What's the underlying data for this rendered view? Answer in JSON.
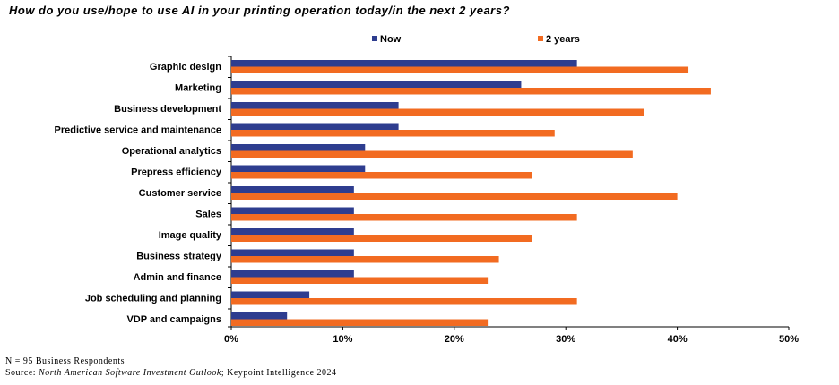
{
  "title": "How do you use/hope to use AI in your printing operation today/in the next 2 years?",
  "footnote": {
    "respondents": "N = 95 Business Respondents",
    "source_prefix": "Source: ",
    "source_title": "North American Software Investment Outlook",
    "source_suffix": "; Keypoint Intelligence 2024"
  },
  "colors": {
    "now": "#2e3d8f",
    "two_years": "#f26b21",
    "axis": "#000000"
  },
  "chart_data": {
    "type": "bar",
    "orientation": "horizontal",
    "categories": [
      "Graphic design",
      "Marketing",
      "Business development",
      "Predictive service and maintenance",
      "Operational analytics",
      "Prepress efficiency",
      "Customer service",
      "Sales",
      "Image quality",
      "Business strategy",
      "Admin and finance",
      "Job scheduling and planning",
      "VDP and campaigns"
    ],
    "series": [
      {
        "name": "Now",
        "values": [
          31,
          26,
          15,
          15,
          12,
          12,
          11,
          11,
          11,
          11,
          11,
          7,
          5
        ]
      },
      {
        "name": "2 years",
        "values": [
          41,
          43,
          37,
          29,
          36,
          27,
          40,
          31,
          27,
          24,
          23,
          31,
          23
        ]
      }
    ],
    "xlim": [
      0,
      50
    ],
    "xticks": [
      "0%",
      "10%",
      "20%",
      "30%",
      "40%",
      "50%"
    ],
    "legend": "top",
    "grid": false
  }
}
